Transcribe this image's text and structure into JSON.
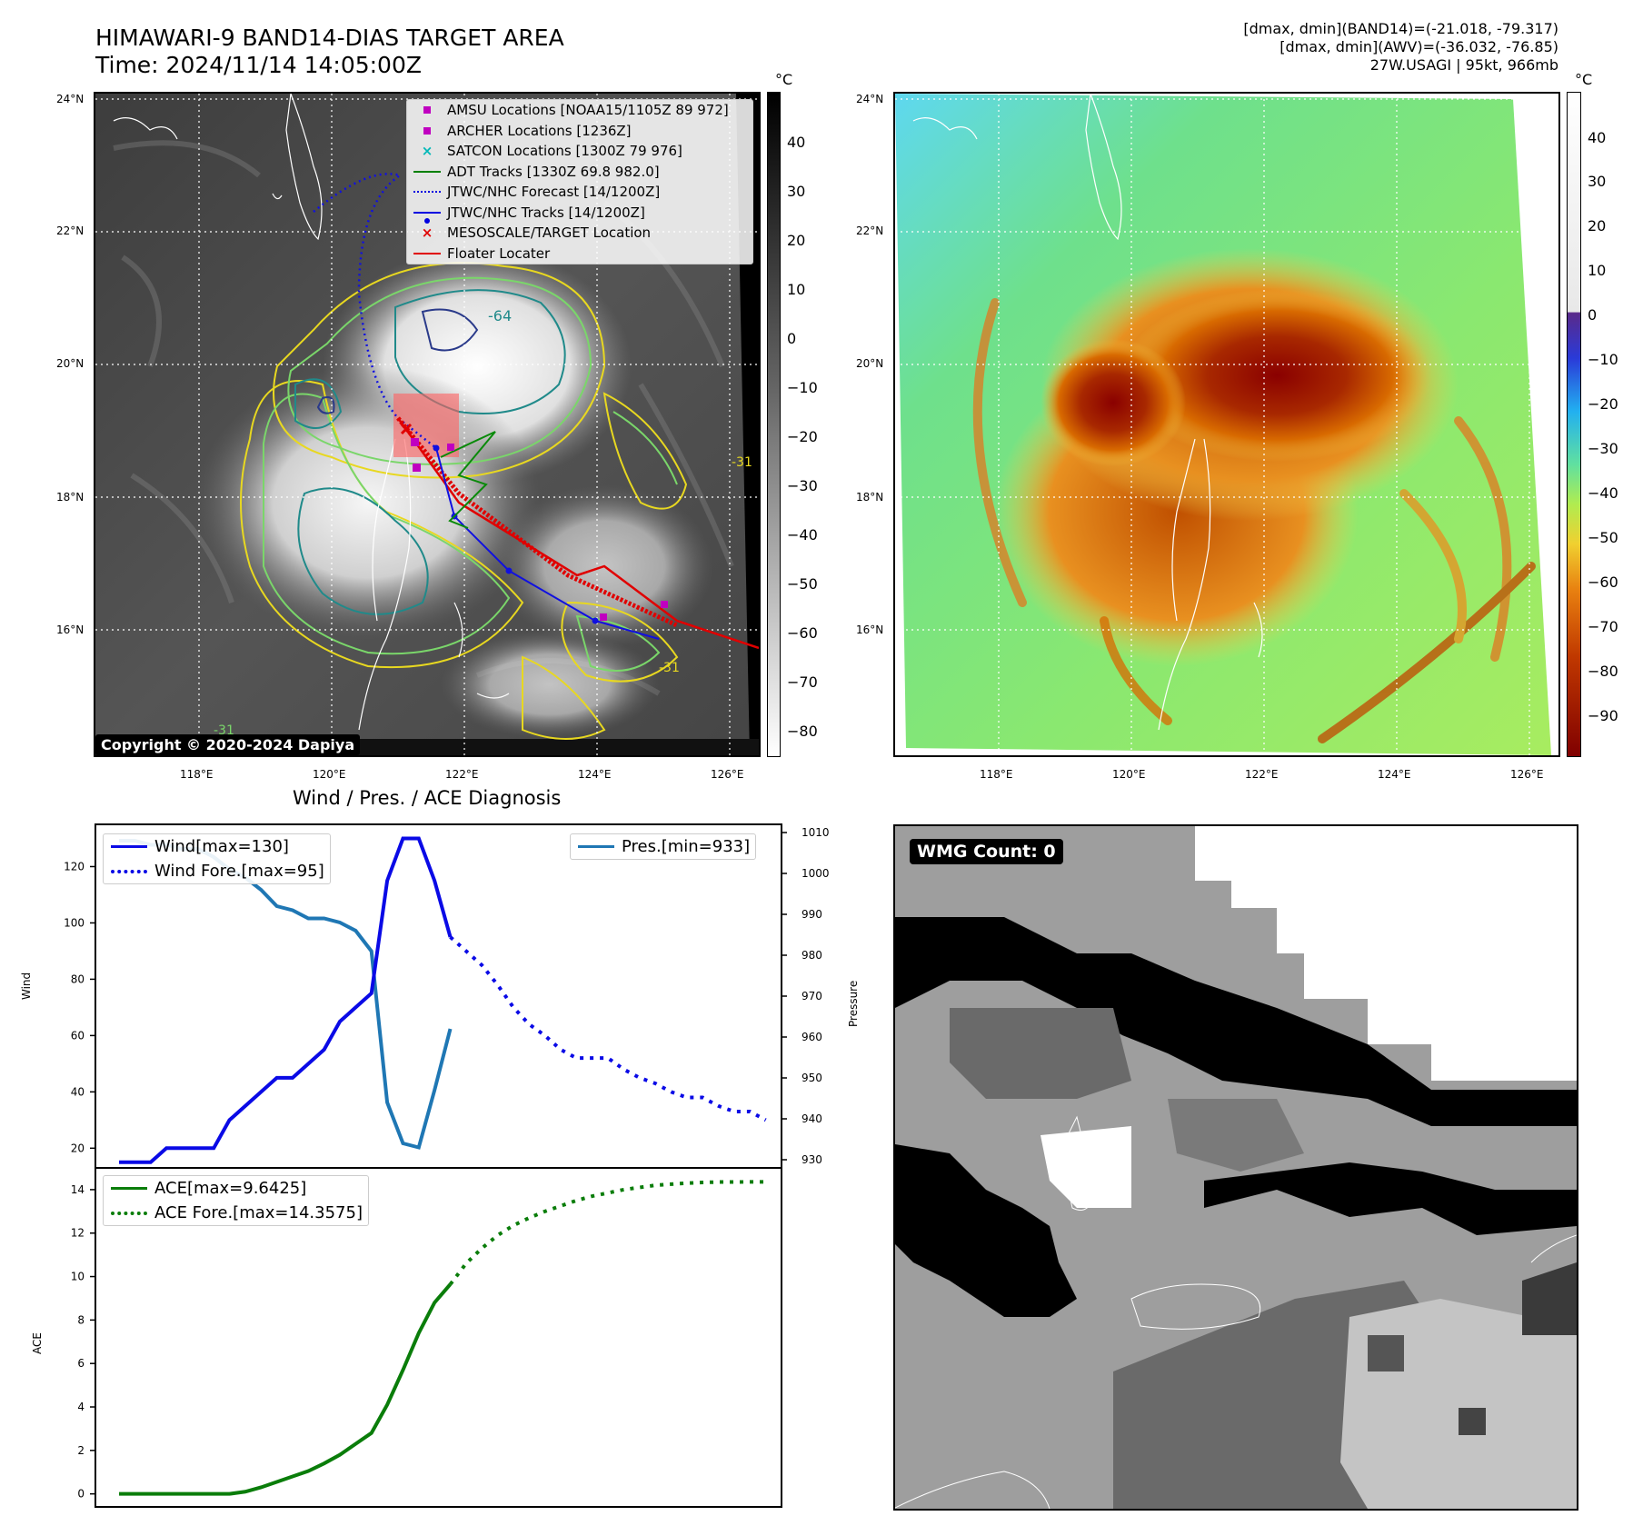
{
  "header": {
    "title_line1": "HIMAWARI-9 BAND14-DIAS TARGET AREA",
    "title_line2": "Time: 2024/11/14 14:05:00Z",
    "info_line1": "[dmax, dmin](BAND14)=(-21.018, -79.317)",
    "info_line2": "[dmax, dmin](AWV)=(-36.032, -76.85)",
    "info_line3": "27W.USAGI | 95kt, 966mb"
  },
  "map_axes": {
    "lat_ticks": [
      "24°N",
      "22°N",
      "20°N",
      "18°N",
      "16°N"
    ],
    "lon_ticks": [
      "118°E",
      "120°E",
      "122°E",
      "124°E",
      "126°E"
    ]
  },
  "legend": {
    "items": [
      {
        "label": "AMSU Locations [NOAA15/1105Z 89 972]",
        "color": "#c000c0",
        "kind": "square"
      },
      {
        "label": "ARCHER Locations [1236Z]",
        "color": "#c000c0",
        "kind": "square"
      },
      {
        "label": "SATCON Locations [1300Z 79 976]",
        "color": "#00b8b8",
        "kind": "x"
      },
      {
        "label": "ADT Tracks [1330Z 69.8 982.0]",
        "color": "#008000",
        "kind": "line"
      },
      {
        "label": "JTWC/NHC Forecast [14/1200Z]",
        "color": "#0000e0",
        "kind": "dotted"
      },
      {
        "label": "JTWC/NHC Tracks [14/1200Z]",
        "color": "#0000e0",
        "kind": "dotline"
      },
      {
        "label": "MESOSCALE/TARGET Location",
        "color": "#e00000",
        "kind": "x"
      },
      {
        "label": "Floater Locater",
        "color": "#e00000",
        "kind": "line"
      }
    ]
  },
  "copyright": "Copyright © 2020-2024 Dapiya",
  "contour_labels": {
    "c1": "-64",
    "c2": "-31",
    "c3": "-31",
    "c4": "-31"
  },
  "colorbar1": {
    "unit": "°C",
    "labels": [
      "40",
      "30",
      "20",
      "10",
      "0",
      "−10",
      "−20",
      "−30",
      "−40",
      "−50",
      "−60",
      "−70",
      "−80"
    ]
  },
  "colorbar2": {
    "unit": "°C",
    "labels": [
      "40",
      "30",
      "20",
      "10",
      "0",
      "−10",
      "−20",
      "−30",
      "−40",
      "−50",
      "−60",
      "−70",
      "−80",
      "−90"
    ]
  },
  "diagnosis": {
    "title": "Wind / Pres. / ACE Diagnosis",
    "wind_ylabel": "Wind",
    "pres_ylabel": "Pressure",
    "ace_ylabel": "ACE",
    "wind_legend": "Wind[max=130]",
    "wind_fore_legend": "Wind Fore.[max=95]",
    "pres_legend": "Pres.[min=933]",
    "ace_legend": "ACE[max=9.6425]",
    "ace_fore_legend": "ACE Fore.[max=14.3575]",
    "wind_ticks": [
      "120",
      "100",
      "80",
      "60",
      "40",
      "20"
    ],
    "pres_ticks": [
      "1010",
      "1000",
      "990",
      "980",
      "970",
      "960",
      "950",
      "940",
      "930"
    ],
    "ace_ticks": [
      "14",
      "12",
      "10",
      "8",
      "6",
      "4",
      "2",
      "0"
    ]
  },
  "wmg": {
    "label": "WMG Count: 0"
  },
  "chart_data": {
    "type": "line",
    "title": "Wind / Pres. / ACE Diagnosis",
    "colors": {
      "wind": "#0a0ae6",
      "pres": "#1f77b4",
      "ace": "#0a7d0a"
    },
    "wind": {
      "x": [
        0,
        1,
        2,
        3,
        4,
        5,
        6,
        7,
        8,
        9,
        10,
        11,
        12,
        13,
        14,
        15,
        16,
        17,
        18,
        19,
        20,
        21
      ],
      "values": [
        15,
        15,
        15,
        20,
        20,
        20,
        20,
        30,
        35,
        40,
        45,
        45,
        50,
        55,
        65,
        70,
        75,
        115,
        130,
        130,
        115,
        95
      ],
      "ylim": [
        13,
        135
      ]
    },
    "wind_forecast": {
      "x": [
        21,
        22,
        23,
        24,
        25,
        26,
        27,
        28,
        29,
        30,
        31,
        32,
        33,
        34,
        35,
        36,
        37,
        38,
        39,
        40,
        41
      ],
      "values": [
        95,
        90,
        85,
        78,
        70,
        64,
        60,
        55,
        52,
        52,
        52,
        48,
        45,
        43,
        40,
        38,
        38,
        35,
        33,
        33,
        30
      ]
    },
    "pressure": {
      "x": [
        0,
        1,
        2,
        3,
        4,
        5,
        6,
        7,
        8,
        9,
        10,
        11,
        12,
        13,
        14,
        15,
        16,
        17,
        18,
        19,
        20,
        21
      ],
      "values": [
        1008,
        1008,
        1007,
        1007,
        1006,
        1006,
        1004,
        1001,
        999,
        996,
        992,
        991,
        989,
        989,
        988,
        986,
        981,
        944,
        934,
        933,
        947,
        962
      ],
      "ylim": [
        928,
        1012
      ]
    },
    "ace": {
      "x": [
        0,
        1,
        2,
        3,
        4,
        5,
        6,
        7,
        8,
        9,
        10,
        11,
        12,
        13,
        14,
        15,
        16,
        17,
        18,
        19,
        20,
        21
      ],
      "values": [
        0,
        0,
        0,
        0,
        0,
        0,
        0,
        0,
        0.1,
        0.3,
        0.55,
        0.8,
        1.05,
        1.4,
        1.8,
        2.3,
        2.8,
        4.1,
        5.7,
        7.4,
        8.8,
        9.6425
      ],
      "ylim": [
        -0.6,
        15
      ]
    },
    "ace_forecast": {
      "x": [
        21,
        22,
        23,
        24,
        25,
        26,
        27,
        28,
        29,
        30,
        31,
        32,
        33,
        34,
        35,
        36,
        37,
        38,
        39,
        40,
        41
      ],
      "values": [
        9.6425,
        10.6,
        11.3,
        11.9,
        12.35,
        12.7,
        13.0,
        13.25,
        13.5,
        13.7,
        13.85,
        14.0,
        14.1,
        14.2,
        14.25,
        14.3,
        14.33,
        14.35,
        14.35,
        14.3575,
        14.3575
      ]
    },
    "xlim": [
      -1.5,
      42
    ]
  }
}
